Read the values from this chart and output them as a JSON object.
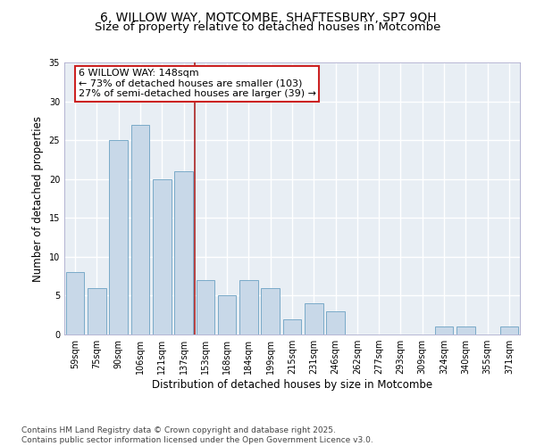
{
  "title_line1": "6, WILLOW WAY, MOTCOMBE, SHAFTESBURY, SP7 9QH",
  "title_line2": "Size of property relative to detached houses in Motcombe",
  "xlabel": "Distribution of detached houses by size in Motcombe",
  "ylabel": "Number of detached properties",
  "categories": [
    "59sqm",
    "75sqm",
    "90sqm",
    "106sqm",
    "121sqm",
    "137sqm",
    "153sqm",
    "168sqm",
    "184sqm",
    "199sqm",
    "215sqm",
    "231sqm",
    "246sqm",
    "262sqm",
    "277sqm",
    "293sqm",
    "309sqm",
    "324sqm",
    "340sqm",
    "355sqm",
    "371sqm"
  ],
  "values": [
    8,
    6,
    25,
    27,
    20,
    21,
    7,
    5,
    7,
    6,
    2,
    4,
    3,
    0,
    0,
    0,
    0,
    1,
    1,
    0,
    1
  ],
  "bar_color": "#c8d8e8",
  "bar_edge_color": "#7aaac8",
  "vline_x": 5.5,
  "vline_color": "#aa2222",
  "annotation_text_line1": "6 WILLOW WAY: 148sqm",
  "annotation_text_line2": "← 73% of detached houses are smaller (103)",
  "annotation_text_line3": "27% of semi-detached houses are larger (39) →",
  "annotation_box_color": "#cc2222",
  "ylim": [
    0,
    35
  ],
  "yticks": [
    0,
    5,
    10,
    15,
    20,
    25,
    30,
    35
  ],
  "bg_color": "#e8eef4",
  "grid_color": "#ffffff",
  "footer_line1": "Contains HM Land Registry data © Crown copyright and database right 2025.",
  "footer_line2": "Contains public sector information licensed under the Open Government Licence v3.0.",
  "title_fontsize": 10,
  "subtitle_fontsize": 9.5,
  "axis_label_fontsize": 8.5,
  "tick_fontsize": 7,
  "annotation_fontsize": 8,
  "footer_fontsize": 6.5
}
